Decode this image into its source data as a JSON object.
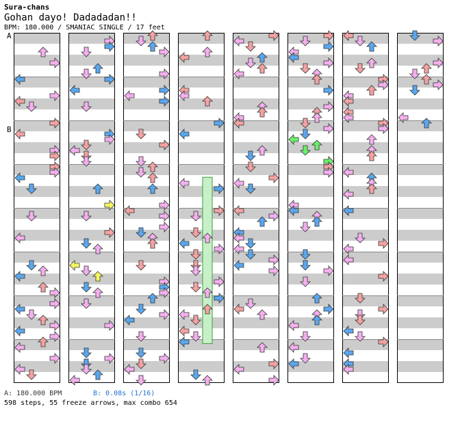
{
  "header": {
    "source": "Sura-chans",
    "title": "Gohan dayo! Dadadadan!!",
    "meta": "BPM: 180.000 / SMANIAC SINGLE / 17 feet"
  },
  "markers": [
    "A",
    "B"
  ],
  "footer": {
    "bpm": "A: 180.000 BPM",
    "stop": "B: 0.08s (1/16)",
    "stats": "598 steps, 55 freeze arrows, max combo 654"
  },
  "colors": {
    "stripe": "#cccccc",
    "background": "#ffffff",
    "border": "#000000",
    "red_note": "#f4a2a2",
    "blue_note": "#5aa7ee",
    "pink_note": "#f4b0ee",
    "yellow_note": "#f6f660",
    "green_note": "#6cf06c",
    "freeze_body": "#c8f0c8",
    "stop_text": "#2070d0"
  },
  "chart_data": {
    "type": "step-chart",
    "columns": 8,
    "measures_per_column": 8,
    "freeze_segments": [
      {
        "column": 3,
        "from_measure": 3.3,
        "to_measure": 7.1
      }
    ]
  }
}
